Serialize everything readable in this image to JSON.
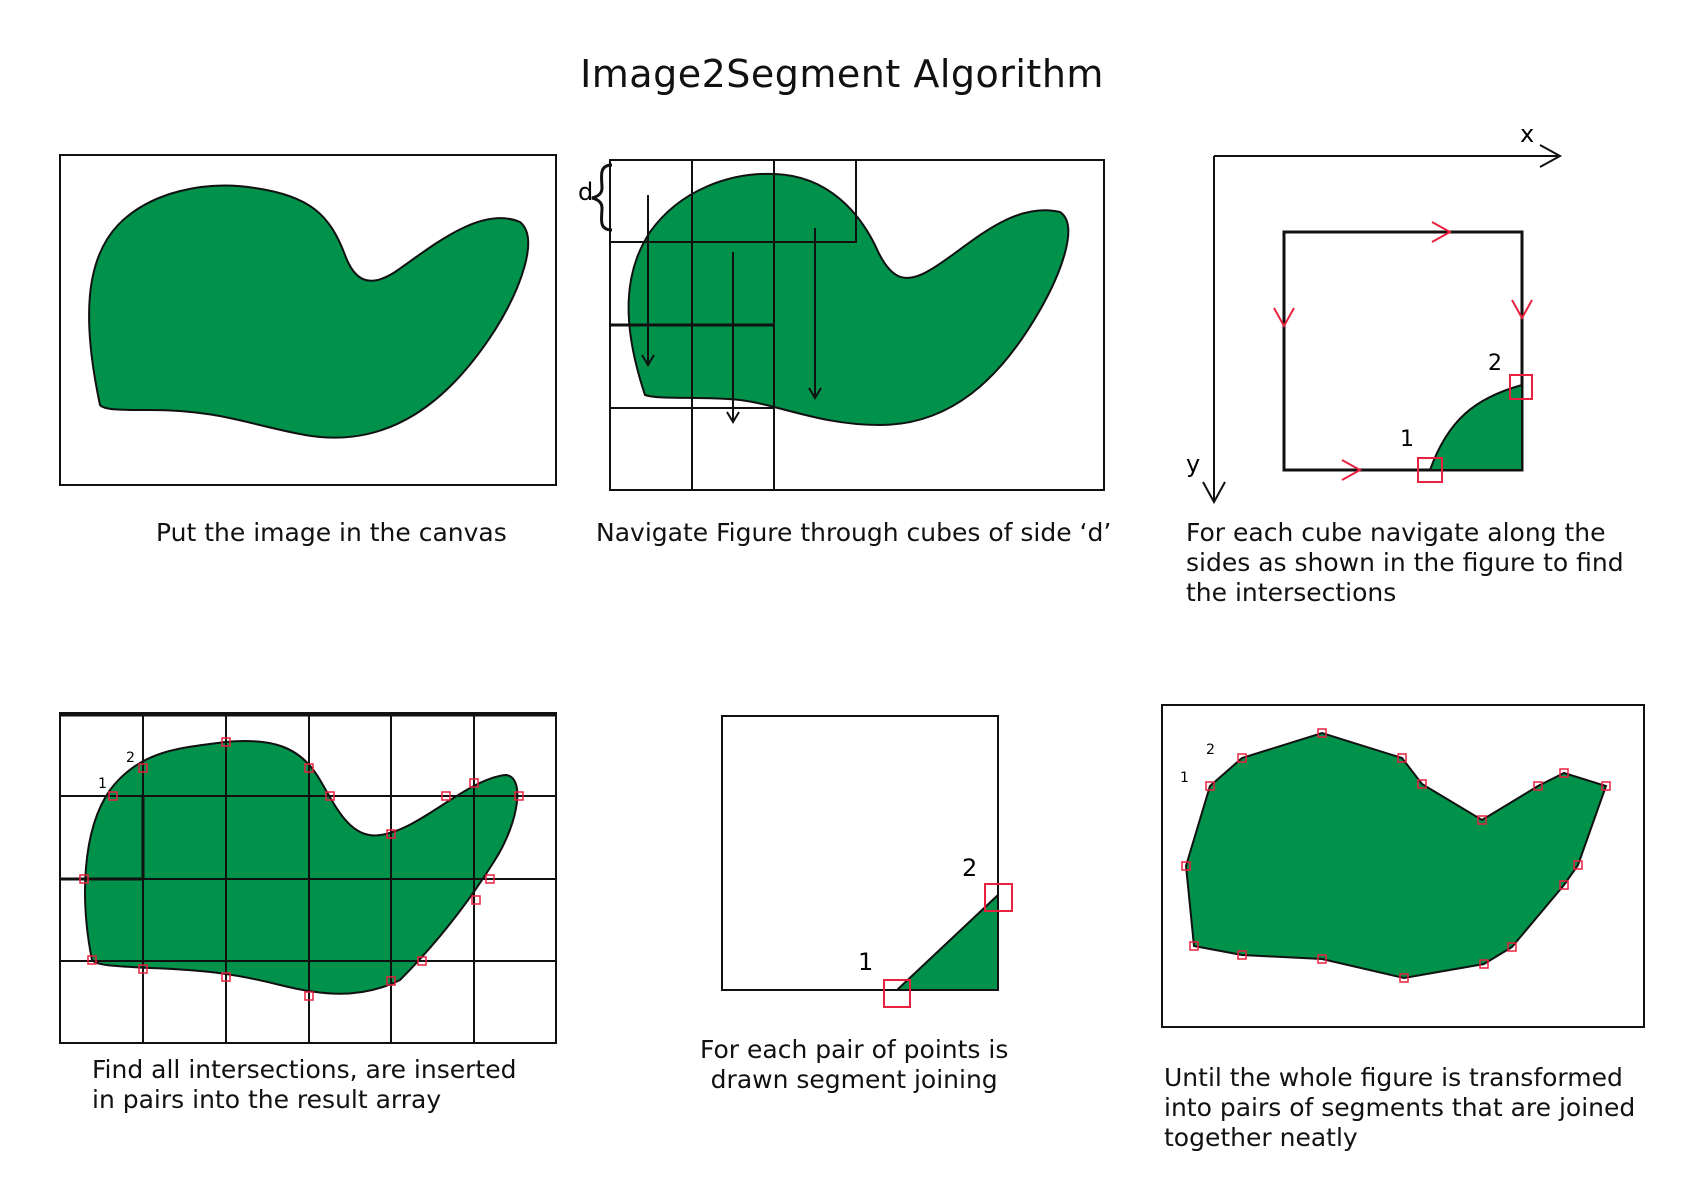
{
  "title": "Image2Segment Algorithm",
  "colors": {
    "fill": "#00914a",
    "outline": "#111111",
    "marker": "#e8213f",
    "grid": "#111111"
  },
  "panels": {
    "canvas": {
      "caption": "Put the image in the canvas"
    },
    "navigate": {
      "caption": "Navigate Figure  through cubes of side ‘d’",
      "d_label": "d"
    },
    "cube_walk": {
      "caption": "For each cube navigate along the\nsides as shown in the figure to find\nthe intersections",
      "x_label": "x",
      "y_label": "y",
      "point1": "1",
      "point2": "2"
    },
    "all_intersections": {
      "caption": "Find all intersections, are inserted\n in pairs into the result array",
      "point1": "1",
      "point2": "2"
    },
    "segment_pair": {
      "caption": "For each pair of points is\ndrawn segment joining",
      "point1": "1",
      "point2": "2"
    },
    "result": {
      "caption": "Until the whole figure is transformed\ninto pairs of segments that are joined\ntogether neatly",
      "point1": "1",
      "point2": "2"
    }
  }
}
